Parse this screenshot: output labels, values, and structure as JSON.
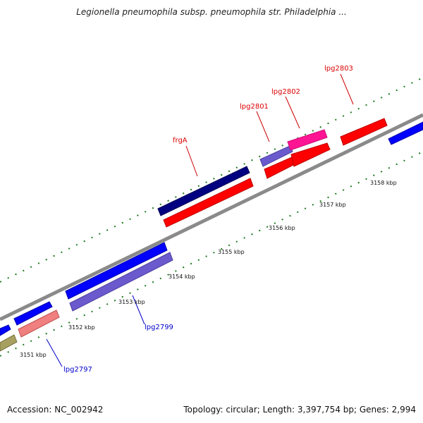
{
  "title": "Legionella pneumophila subsp. pneumophila str. Philadelphia ...",
  "footer": {
    "accession": "Accession: NC_002942",
    "summary": "Topology: circular; Length: 3,397,754 bp; Genes: 2,994"
  },
  "colors": {
    "backbone": "#8a8a8a",
    "tick_dots": "#1f7a1f",
    "label_red": "#dd0000",
    "label_blue": "#0000cc"
  },
  "ticks": [
    "3151 kbp",
    "3152 kbp",
    "3153 kbp",
    "3154 kbp",
    "3155 kbp",
    "3156 kbp",
    "3157 kbp",
    "3158 kbp"
  ],
  "gene_labels": [
    "frgA",
    "lpg2801",
    "lpg2802",
    "lpg2803",
    "lpg2799",
    "lpg2797"
  ]
}
